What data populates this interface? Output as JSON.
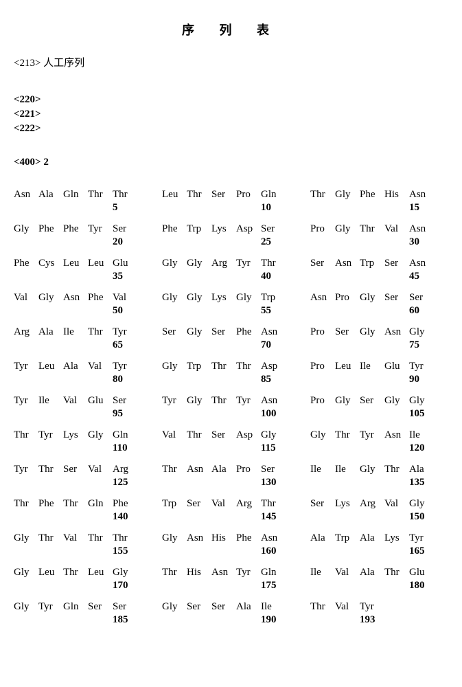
{
  "title": "序 列 表",
  "annotations": {
    "a213": "<213>  人工序列",
    "a220": "<220>",
    "a221": "<221>",
    "a222": "<222>",
    "a400": "<400>  2"
  },
  "sequence": {
    "rows": [
      {
        "g1": [
          "Asn",
          "Ala",
          "Gln",
          "Thr",
          "Thr"
        ],
        "g2": [
          "Leu",
          "Thr",
          "Ser",
          "Pro",
          "Gln"
        ],
        "g3": [
          "Thr",
          "Gly",
          "Phe",
          "His",
          "Asn"
        ],
        "n1": "5",
        "n2": "10",
        "n3": "15"
      },
      {
        "g1": [
          "Gly",
          "Phe",
          "Phe",
          "Tyr",
          "Ser"
        ],
        "g2": [
          "Phe",
          "Trp",
          "Lys",
          "Asp",
          "Ser"
        ],
        "g3": [
          "Pro",
          "Gly",
          "Thr",
          "Val",
          "Asn"
        ],
        "n1": "20",
        "n2": "25",
        "n3": "30"
      },
      {
        "g1": [
          "Phe",
          "Cys",
          "Leu",
          "Leu",
          "Glu"
        ],
        "g2": [
          "Gly",
          "Gly",
          "Arg",
          "Tyr",
          "Thr"
        ],
        "g3": [
          "Ser",
          "Asn",
          "Trp",
          "Ser",
          "Asn"
        ],
        "n1": "35",
        "n2": "40",
        "n3": "45"
      },
      {
        "g1": [
          "Val",
          "Gly",
          "Asn",
          "Phe",
          "Val"
        ],
        "g2": [
          "Gly",
          "Gly",
          "Lys",
          "Gly",
          "Trp"
        ],
        "g3": [
          "Asn",
          "Pro",
          "Gly",
          "Ser",
          "Ser"
        ],
        "n1": "50",
        "n2": "55",
        "n3": "60"
      },
      {
        "g1": [
          "Arg",
          "Ala",
          "Ile",
          "Thr",
          "Tyr"
        ],
        "g2": [
          "Ser",
          "Gly",
          "Ser",
          "Phe",
          "Asn"
        ],
        "g3": [
          "Pro",
          "Ser",
          "Gly",
          "Asn",
          "Gly"
        ],
        "n1": "65",
        "n2": "70",
        "n3": "75"
      },
      {
        "g1": [
          "Tyr",
          "Leu",
          "Ala",
          "Val",
          "Tyr"
        ],
        "g2": [
          "Gly",
          "Trp",
          "Thr",
          "Thr",
          "Asp"
        ],
        "g3": [
          "Pro",
          "Leu",
          "Ile",
          "Glu",
          "Tyr"
        ],
        "n1": "80",
        "n2": "85",
        "n3": "90"
      },
      {
        "g1": [
          "Tyr",
          "Ile",
          "Val",
          "Glu",
          "Ser"
        ],
        "g2": [
          "Tyr",
          "Gly",
          "Thr",
          "Tyr",
          "Asn"
        ],
        "g3": [
          "Pro",
          "Gly",
          "Ser",
          "Gly",
          "Gly"
        ],
        "n1": "95",
        "n2": "100",
        "n3": "105"
      },
      {
        "g1": [
          "Thr",
          "Tyr",
          "Lys",
          "Gly",
          "Gln"
        ],
        "g2": [
          "Val",
          "Thr",
          "Ser",
          "Asp",
          "Gly"
        ],
        "g3": [
          "Gly",
          "Thr",
          "Tyr",
          "Asn",
          "Ile"
        ],
        "n1": "110",
        "n2": "115",
        "n3": "120"
      },
      {
        "g1": [
          "Tyr",
          "Thr",
          "Ser",
          "Val",
          "Arg"
        ],
        "g2": [
          "Thr",
          "Asn",
          "Ala",
          "Pro",
          "Ser"
        ],
        "g3": [
          "Ile",
          "Ile",
          "Gly",
          "Thr",
          "Ala"
        ],
        "n1": "125",
        "n2": "130",
        "n3": "135"
      },
      {
        "g1": [
          "Thr",
          "Phe",
          "Thr",
          "Gln",
          "Phe"
        ],
        "g2": [
          "Trp",
          "Ser",
          "Val",
          "Arg",
          "Thr"
        ],
        "g3": [
          "Ser",
          "Lys",
          "Arg",
          "Val",
          "Gly"
        ],
        "n1": "140",
        "n2": "145",
        "n3": "150"
      },
      {
        "g1": [
          "Gly",
          "Thr",
          "Val",
          "Thr",
          "Thr"
        ],
        "g2": [
          "Gly",
          "Asn",
          "His",
          "Phe",
          "Asn"
        ],
        "g3": [
          "Ala",
          "Trp",
          "Ala",
          "Lys",
          "Tyr"
        ],
        "n1": "155",
        "n2": "160",
        "n3": "165"
      },
      {
        "g1": [
          "Gly",
          "Leu",
          "Thr",
          "Leu",
          "Gly"
        ],
        "g2": [
          "Thr",
          "His",
          "Asn",
          "Tyr",
          "Gln"
        ],
        "g3": [
          "Ile",
          "Val",
          "Ala",
          "Thr",
          "Glu"
        ],
        "n1": "170",
        "n2": "175",
        "n3": "180"
      },
      {
        "g1": [
          "Gly",
          "Tyr",
          "Gln",
          "Ser",
          "Ser"
        ],
        "g2": [
          "Gly",
          "Ser",
          "Ser",
          "Ala",
          "Ile"
        ],
        "g3": [
          "Thr",
          "Val",
          "Tyr",
          "",
          ""
        ],
        "n1": "185",
        "n2": "190",
        "n3": "193",
        "n3pos": 2
      }
    ]
  }
}
